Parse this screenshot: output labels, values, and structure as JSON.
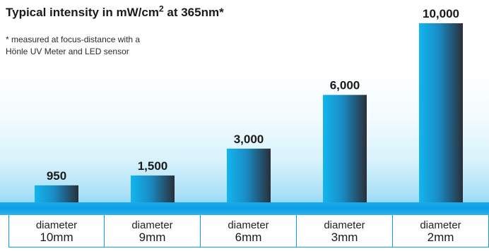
{
  "header": {
    "title_prefix": "Typical intensity in mW/cm",
    "title_sup": "2",
    "title_suffix": " at 365nm*",
    "note_line1": "* measured at focus-distance with a",
    "note_line2": "Hönle UV Meter and LED sensor"
  },
  "chart_data": {
    "type": "bar",
    "categories": [
      "diameter 10mm",
      "diameter 9mm",
      "diameter 6mm",
      "diameter 3mm",
      "diameter 2mm"
    ],
    "category_labels": [
      {
        "top": "diameter",
        "bottom": "10mm"
      },
      {
        "top": "diameter",
        "bottom": "9mm"
      },
      {
        "top": "diameter",
        "bottom": "6mm"
      },
      {
        "top": "diameter",
        "bottom": "3mm"
      },
      {
        "top": "diameter",
        "bottom": "2mm"
      }
    ],
    "values": [
      950,
      1500,
      3000,
      6000,
      10000
    ],
    "value_labels": [
      "950",
      "1,500",
      "3,000",
      "6,000",
      "10,000"
    ],
    "title": "Typical intensity in mW/cm2 at 365nm*",
    "xlabel": "",
    "ylabel": "",
    "ylim": [
      0,
      10000
    ],
    "grid": false,
    "legend": "none",
    "colors": {
      "bar_light": "#12b6ef",
      "bar_mid": "#1a8bc4",
      "bar_dark": "#2a2f38",
      "band": "#0c9fe6",
      "border": "#0c9fe6"
    }
  }
}
